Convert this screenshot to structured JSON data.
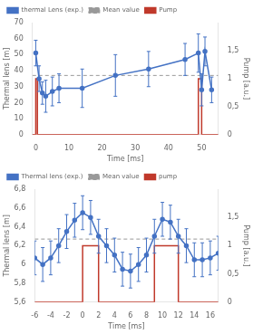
{
  "chart_data": [
    {
      "type": "line",
      "xlabel": "Time [ms]",
      "ylabel": "Thermal lens [m]",
      "y2label": "Pump [a.u.]",
      "xlim": [
        -1,
        55
      ],
      "xticks": [
        0,
        10,
        20,
        30,
        40,
        50
      ],
      "ylim": [
        0,
        70
      ],
      "yticks": [
        0,
        10,
        20,
        30,
        40,
        50,
        60,
        70
      ],
      "y2lim": [
        0,
        2.0
      ],
      "y2ticks": [
        0,
        {
          "value": 0.5,
          "label": "0,5"
        },
        1.0,
        {
          "value": 1.5,
          "label": "1,5"
        }
      ],
      "grid": false,
      "legend": "top",
      "series": [
        {
          "name": "thermal Lens (exp.)",
          "color": "#4472C4",
          "marker": "o",
          "line_style": "solid",
          "x": [
            0,
            1,
            2,
            3,
            5,
            7,
            14,
            24,
            34,
            45,
            49,
            50,
            51,
            53
          ],
          "values": [
            51,
            35,
            26,
            24,
            27,
            29,
            29,
            37,
            41,
            47,
            51,
            28,
            52,
            28
          ],
          "yerr": [
            8,
            8,
            7,
            10,
            9,
            9,
            12,
            13,
            11,
            10,
            12,
            10,
            9,
            8
          ]
        },
        {
          "name": "Mean value",
          "color": "#999999",
          "type": "hline",
          "line_style": "dashed",
          "values": [
            37.0
          ]
        },
        {
          "name": "Pump",
          "color": "#C0392B",
          "line_style": "solid",
          "axis": "y2",
          "x": [
            -1,
            0,
            0,
            0.5,
            0.5,
            49,
            49,
            50,
            50,
            55
          ],
          "values": [
            0,
            0,
            1,
            1,
            0,
            0,
            1,
            1,
            0,
            0
          ]
        }
      ]
    },
    {
      "type": "line",
      "xlabel": "Time [ms]",
      "ylabel": "Thermal lens [m]",
      "y2label": "Pump [a.u.]",
      "xlim": [
        -6,
        17
      ],
      "xticks": [
        -6,
        -4,
        -2,
        0,
        2,
        4,
        6,
        8,
        10,
        12,
        14,
        16
      ],
      "ylim": [
        5.6,
        6.8
      ],
      "yticks": [
        {
          "value": 5.6,
          "label": "5,6"
        },
        {
          "value": 5.8,
          "label": "5,8"
        },
        6.0,
        {
          "value": 6.2,
          "label": "6,2"
        },
        {
          "value": 6.4,
          "label": "6,4"
        },
        {
          "value": 6.6,
          "label": "6,6"
        },
        {
          "value": 6.8,
          "label": "6,8"
        }
      ],
      "y2lim": [
        0,
        2.0
      ],
      "y2ticks": [
        0,
        {
          "value": 0.5,
          "label": "0,5"
        },
        1.0,
        {
          "value": 1.5,
          "label": "1,5"
        }
      ],
      "grid": false,
      "legend": "top",
      "series": [
        {
          "name": "Thermal lens (exp.)",
          "color": "#4472C4",
          "marker": "o",
          "line_style": "solid",
          "x": [
            -6,
            -5,
            -4,
            -3,
            -2,
            -1,
            0,
            1,
            2,
            3,
            4,
            5,
            6,
            7,
            8,
            9,
            10,
            11,
            12,
            13,
            14,
            15,
            16,
            17
          ],
          "values": [
            6.07,
            6.0,
            6.07,
            6.2,
            6.35,
            6.47,
            6.55,
            6.5,
            6.3,
            6.2,
            6.1,
            5.95,
            5.93,
            6.0,
            6.1,
            6.3,
            6.48,
            6.45,
            6.3,
            6.2,
            6.05,
            6.05,
            6.07,
            6.12
          ],
          "yerr": [
            0.18,
            0.18,
            0.18,
            0.18,
            0.18,
            0.18,
            0.18,
            0.18,
            0.18,
            0.18,
            0.18,
            0.18,
            0.18,
            0.18,
            0.18,
            0.18,
            0.18,
            0.18,
            0.18,
            0.18,
            0.18,
            0.18,
            0.18,
            0.18
          ]
        },
        {
          "name": "Mean value",
          "color": "#999999",
          "type": "hline",
          "line_style": "dashed",
          "values": [
            6.27
          ]
        },
        {
          "name": "pump",
          "color": "#C0392B",
          "line_style": "solid",
          "axis": "y2",
          "x": [
            -6,
            0,
            0,
            2,
            2,
            9,
            9,
            12,
            12,
            17
          ],
          "values": [
            0,
            0,
            1,
            1,
            0,
            0,
            1,
            1,
            0,
            0
          ]
        }
      ]
    }
  ]
}
